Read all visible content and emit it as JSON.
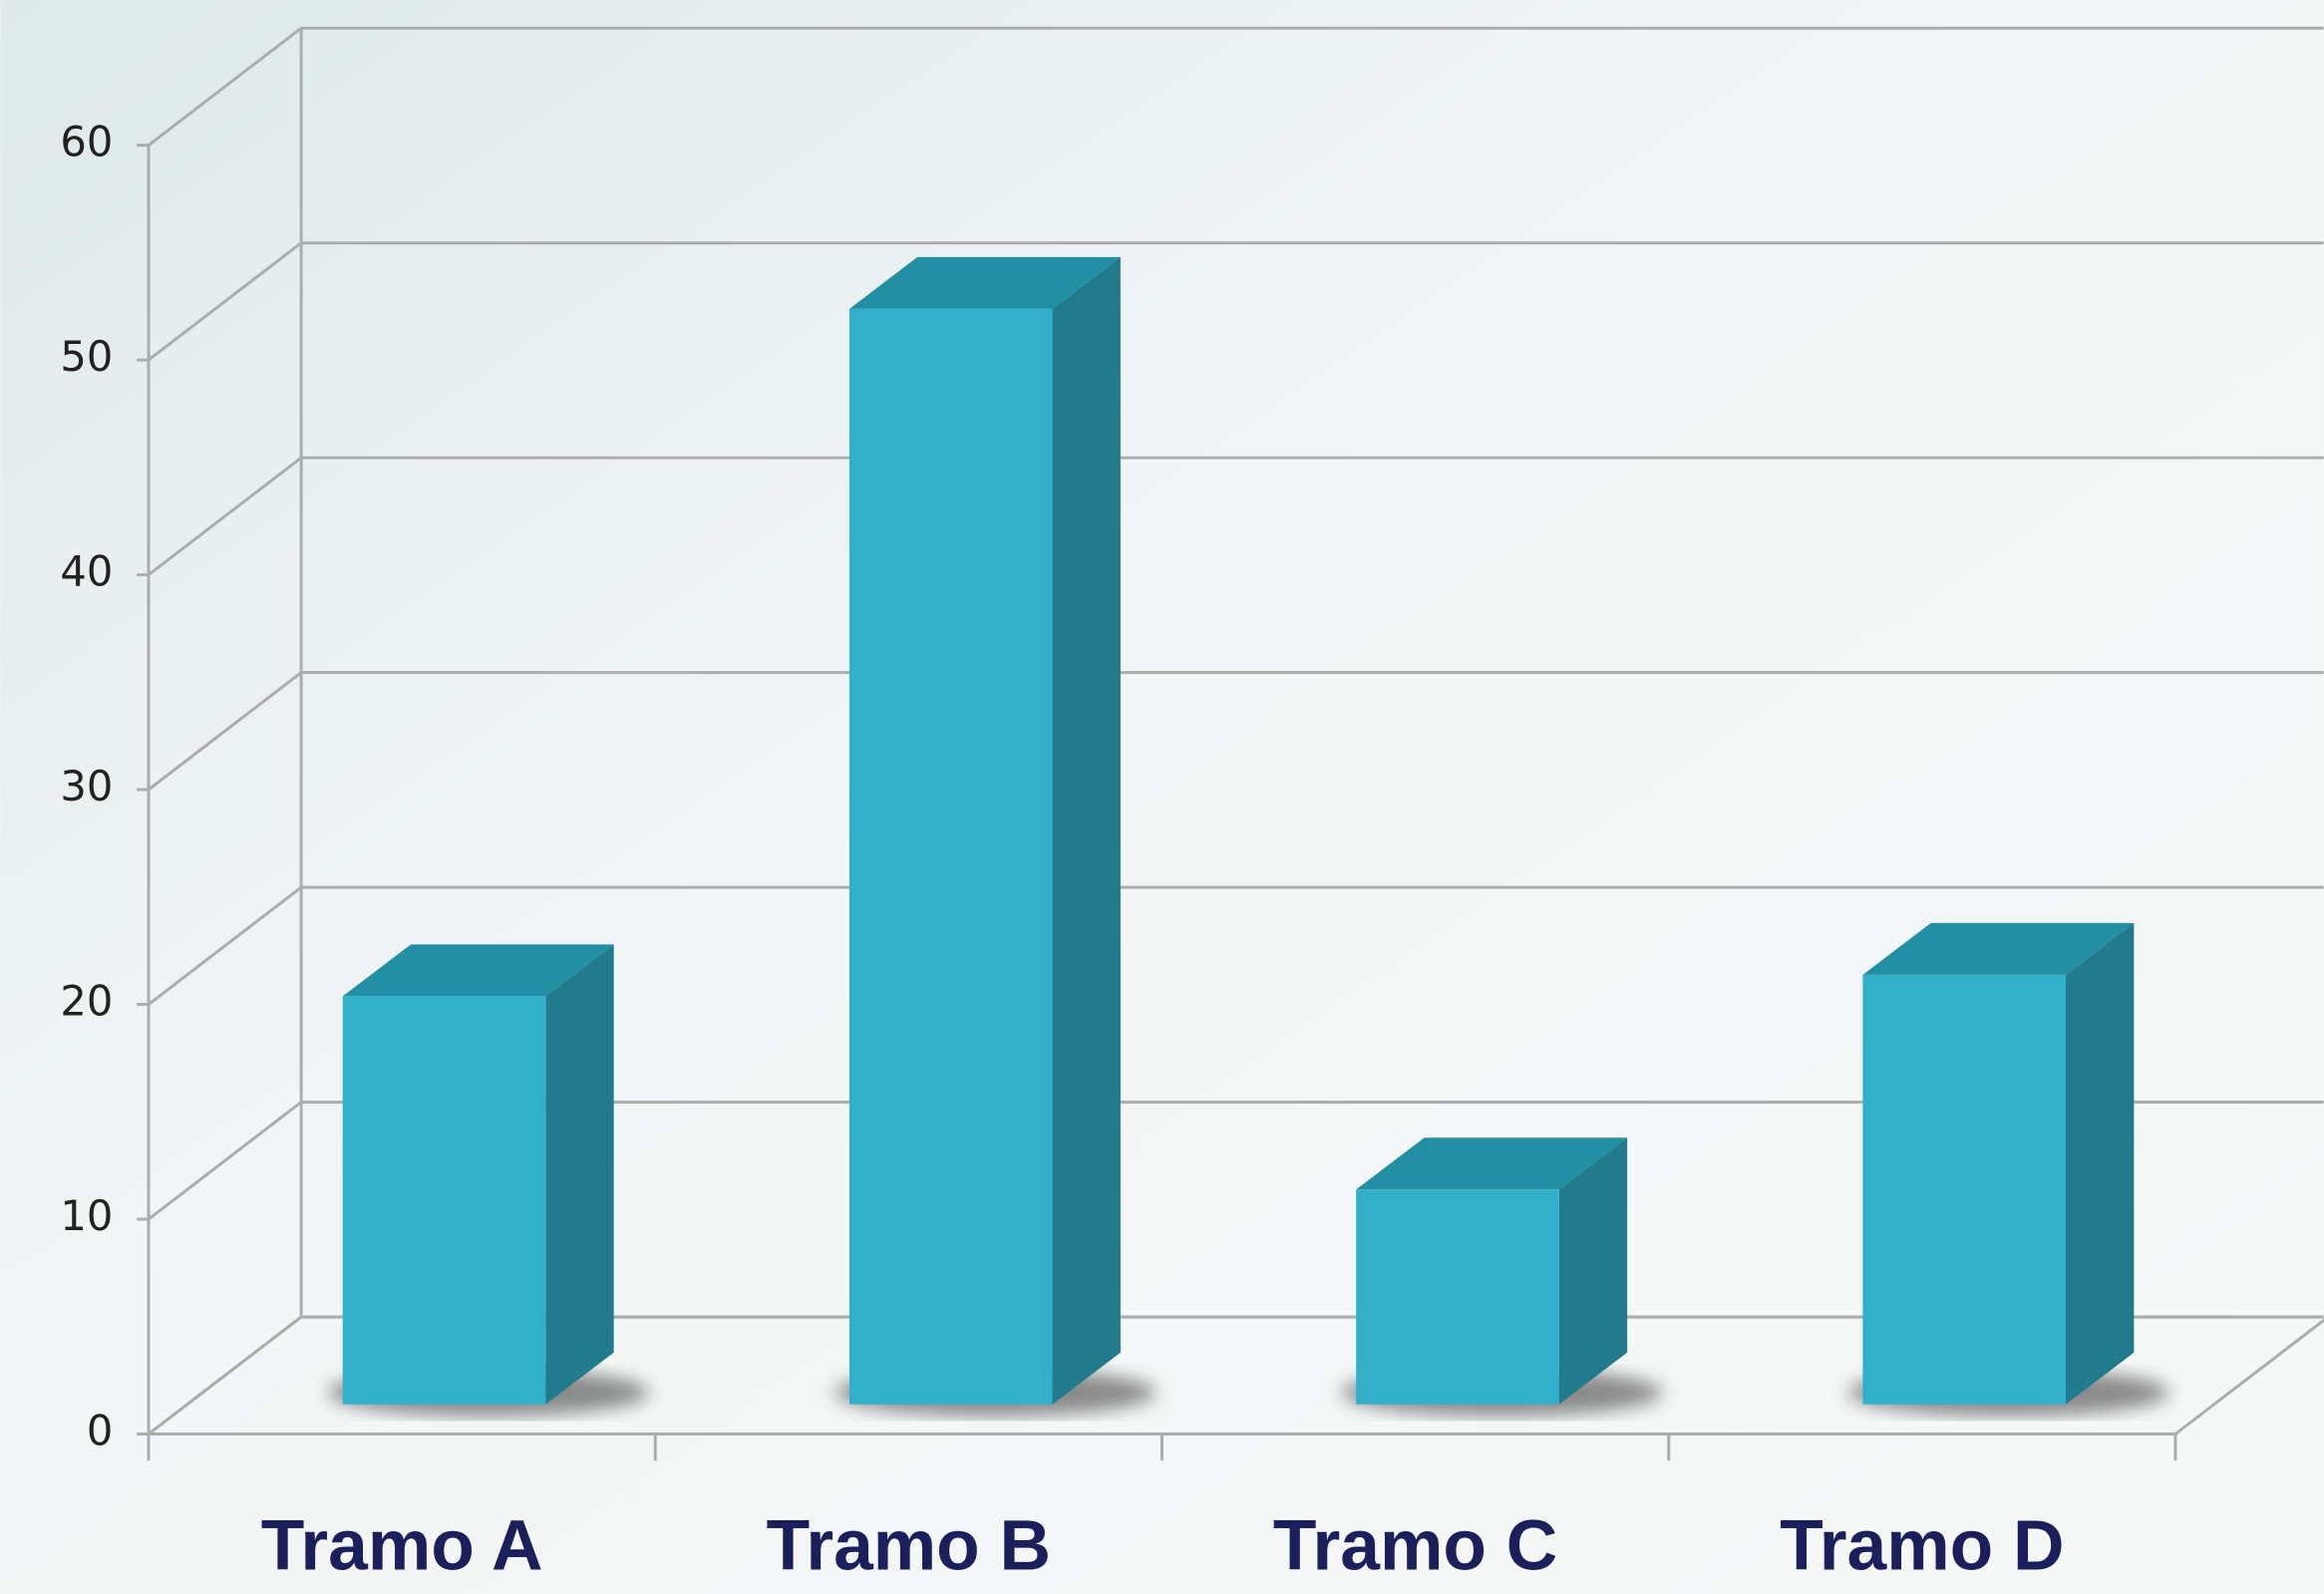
{
  "chart_data": {
    "type": "bar3d",
    "categories": [
      "Tramo A",
      "Tramo B",
      "Tramo C",
      "Tramo D"
    ],
    "values": [
      19,
      51,
      10,
      20
    ],
    "color": "#33b0c9",
    "ylim": [
      0,
      60
    ],
    "yticks": [
      0,
      10,
      20,
      30,
      40,
      50,
      60
    ],
    "grid": true
  }
}
